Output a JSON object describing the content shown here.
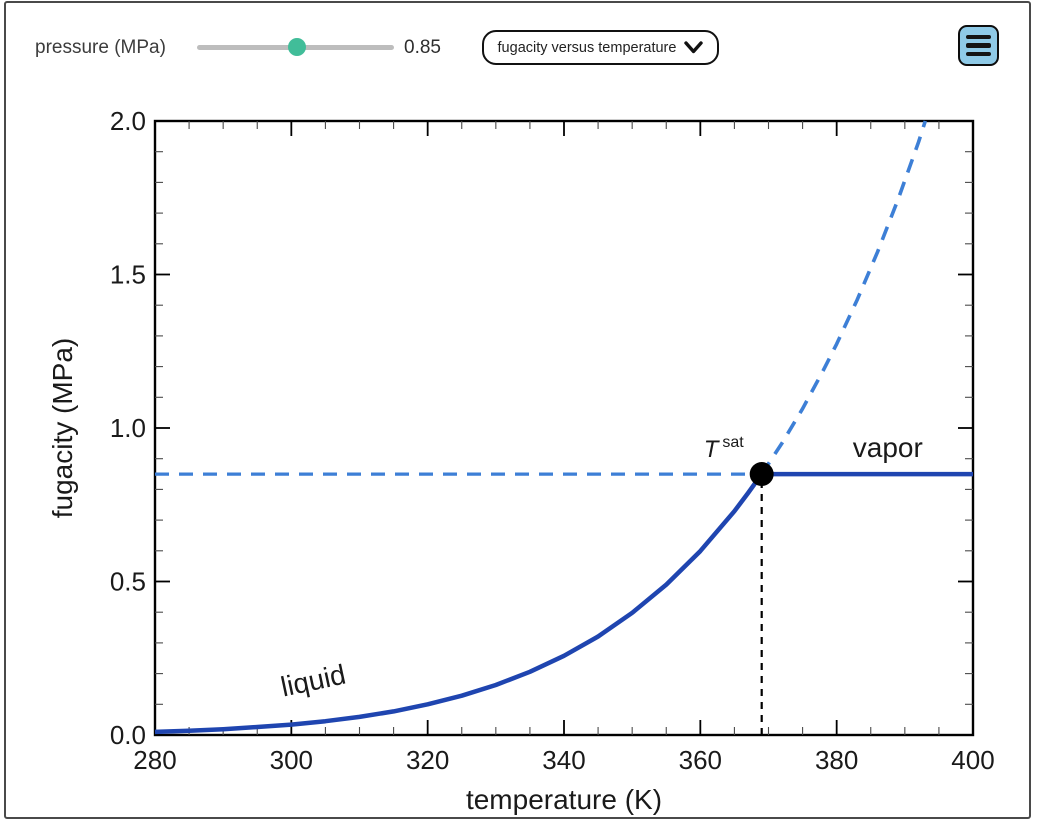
{
  "controls": {
    "slider": {
      "label": "pressure (MPa)",
      "value": "0.85",
      "handle_color": "#41bd99",
      "track_color": "#bdbdbd"
    },
    "dropdown": {
      "selected": "fugacity versus temperature"
    },
    "menu_button": {
      "fill_color": "#8fcae7"
    }
  },
  "chart_data": {
    "type": "line",
    "title": "",
    "xlabel": "temperature (K)",
    "ylabel": "fugacity (MPa)",
    "xlim": [
      280,
      400
    ],
    "ylim": [
      0,
      2
    ],
    "x_major_ticks": [
      280,
      300,
      320,
      340,
      360,
      380,
      400
    ],
    "x_tick_labels": [
      "280",
      "300",
      "320",
      "340",
      "360",
      "380",
      "400"
    ],
    "x_minor_step": 5,
    "y_major_ticks": [
      0,
      0.5,
      1,
      1.5,
      2
    ],
    "y_tick_labels": [
      "0.0",
      "0.5",
      "1.0",
      "1.5",
      "2.0"
    ],
    "y_minor_step": 0.1,
    "grid": false,
    "frame": true,
    "saturation_point": {
      "T": 369,
      "fugacity_MPa": 0.85
    },
    "series": [
      {
        "name": "pressure-guide-dashed",
        "style": "dashed",
        "color": "#3d7fd6",
        "width": 3.2,
        "dash": "14 10",
        "points": [
          [
            280,
            0.85
          ],
          [
            369,
            0.85
          ]
        ]
      },
      {
        "name": "superheated-liquid-extension-dashed",
        "style": "dashed",
        "color": "#3d7fd6",
        "width": 3.6,
        "dash": "14 10",
        "points": [
          [
            369,
            0.85
          ],
          [
            372,
            0.951
          ],
          [
            375,
            1.063
          ],
          [
            378,
            1.186
          ],
          [
            380,
            1.274
          ],
          [
            383,
            1.417
          ],
          [
            386,
            1.574
          ],
          [
            389,
            1.744
          ],
          [
            392,
            1.931
          ],
          [
            393,
            2.0
          ]
        ]
      },
      {
        "name": "tsat-guide-dashed",
        "style": "dashed",
        "color": "#000000",
        "width": 2.2,
        "dash": "7 6",
        "points": [
          [
            369,
            0
          ],
          [
            369,
            0.85
          ]
        ]
      },
      {
        "name": "liquid-curve",
        "style": "solid",
        "color": "#1f45b0",
        "width": 4.5,
        "points": [
          [
            280,
            0.01
          ],
          [
            285,
            0.014
          ],
          [
            290,
            0.019
          ],
          [
            295,
            0.026
          ],
          [
            300,
            0.034
          ],
          [
            305,
            0.045
          ],
          [
            310,
            0.059
          ],
          [
            315,
            0.077
          ],
          [
            320,
            0.1
          ],
          [
            325,
            0.128
          ],
          [
            330,
            0.163
          ],
          [
            335,
            0.206
          ],
          [
            340,
            0.258
          ],
          [
            345,
            0.321
          ],
          [
            350,
            0.398
          ],
          [
            355,
            0.49
          ],
          [
            360,
            0.599
          ],
          [
            365,
            0.729
          ],
          [
            367,
            0.788
          ],
          [
            369,
            0.85
          ]
        ]
      },
      {
        "name": "vapor-line",
        "style": "solid",
        "color": "#1f45b0",
        "width": 4.5,
        "points": [
          [
            369,
            0.85
          ],
          [
            400,
            0.85
          ]
        ]
      }
    ],
    "annotations": [
      {
        "name": "liquid-label",
        "text": "liquid",
        "T": 303.5,
        "f": 0.147,
        "rotate": -12,
        "size": 28
      },
      {
        "name": "vapor-label",
        "text": "vapor",
        "T": 387.5,
        "f": 0.905,
        "rotate": 0,
        "size": 28
      },
      {
        "name": "tsat-label",
        "text_main": "T",
        "text_sup": "sat",
        "T": 360.5,
        "f": 0.905
      }
    ],
    "point_marker": {
      "shape": "circle",
      "radius": 12,
      "color": "#000000"
    }
  }
}
